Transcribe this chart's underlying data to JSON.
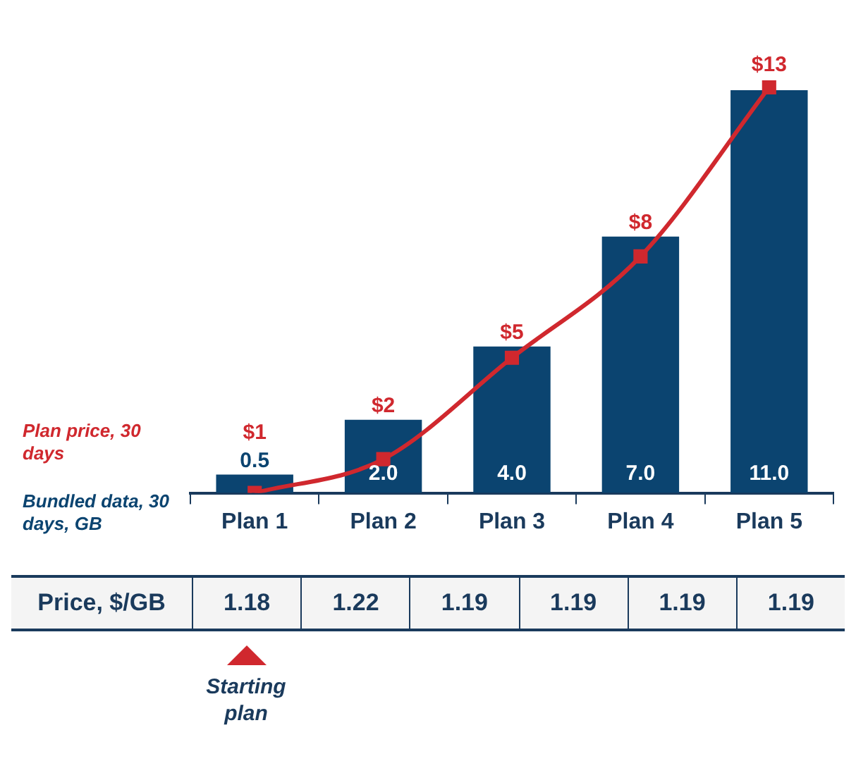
{
  "chart_data": {
    "type": "bar",
    "categories": [
      "Plan 1",
      "Plan 2",
      "Plan 3",
      "Plan 4",
      "Plan 5"
    ],
    "series": [
      {
        "name": "Bundled data, 30 days, GB",
        "color": "#0b4470",
        "values": [
          0.5,
          2.0,
          4.0,
          7.0,
          11.0
        ],
        "value_labels": [
          "0.5",
          "2.0",
          "4.0",
          "7.0",
          "11.0"
        ]
      },
      {
        "name": "Plan price, 30 days",
        "type": "line",
        "axis": "y2",
        "color": "#d0282e",
        "values": [
          1,
          2,
          5,
          8,
          13
        ],
        "value_labels": [
          "$1",
          "$2",
          "$5",
          "$8",
          "$13"
        ]
      }
    ],
    "tick_labels": "x",
    "marker": "square",
    "annotations": [
      "Price, $/GB",
      "1.18",
      "1.22",
      "1.19",
      "1.19",
      "1.19",
      "1.19",
      "Starting plan"
    ]
  }
}
